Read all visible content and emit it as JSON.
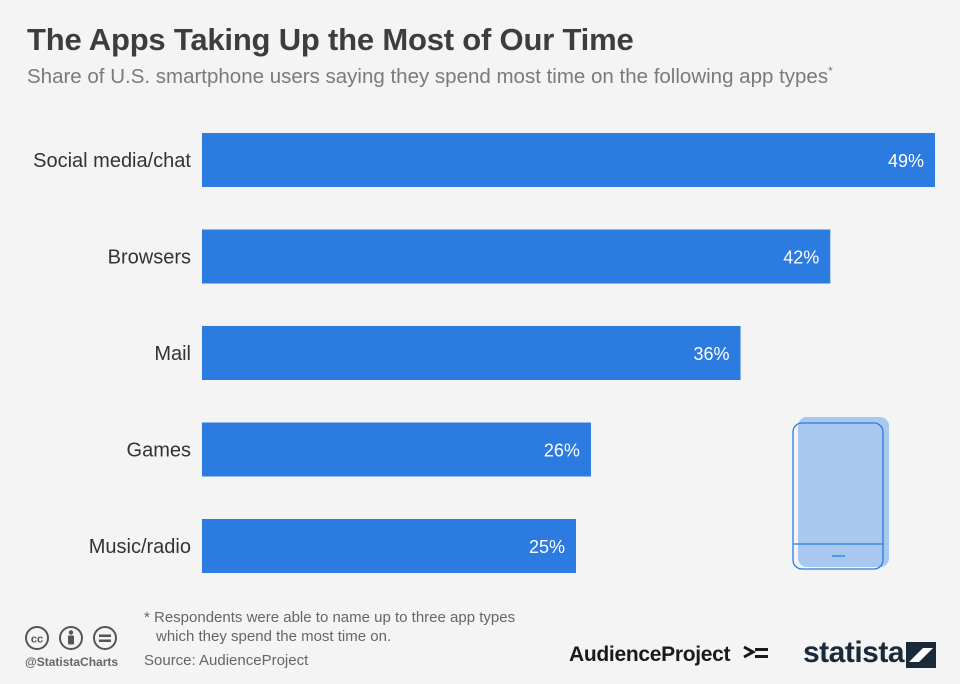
{
  "header": {
    "title": "The Apps Taking Up the Most of Our Time",
    "subtitle": "Share of U.S. smartphone users saying they spend most time on the following app types",
    "subtitle_mark": "*"
  },
  "chart_data": {
    "type": "bar",
    "orientation": "horizontal",
    "categories": [
      "Social media/chat",
      "Browsers",
      "Mail",
      "Games",
      "Music/radio"
    ],
    "values": [
      49,
      42,
      36,
      26,
      25
    ],
    "value_labels": [
      "49%",
      "42%",
      "36%",
      "26%",
      "25%"
    ],
    "unit": "%",
    "xlim": [
      0,
      49
    ],
    "grid": false,
    "bar_color": "#2b7be0"
  },
  "footer": {
    "footnote_line1": "* Respondents were able to name up to three app types",
    "footnote_line2": "which they spend the most time on.",
    "source": "Source: AudienceProject",
    "handle": "@StatistaCharts",
    "partner_logo": "AudienceProject",
    "brand_logo": "statista"
  },
  "icons": {
    "license": [
      "cc-icon",
      "attribution-icon",
      "no-derivatives-icon"
    ],
    "illustration": "smartphone-icon"
  },
  "colors": {
    "bar": "#2b7be0",
    "phone_fill": "#a8c8f0",
    "phone_stroke": "#2b7be0",
    "title": "#3d3d3d",
    "subtitle": "#7a7a7a"
  }
}
